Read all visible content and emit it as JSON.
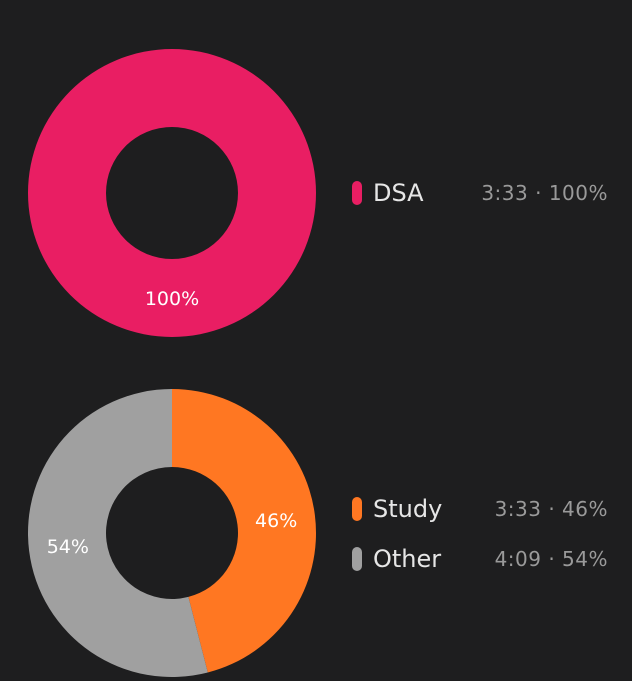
{
  "chart_data": [
    {
      "type": "pie",
      "donut": true,
      "slices": [
        {
          "label": "DSA",
          "time": "3:33",
          "percent": 100,
          "percent_label": "100%",
          "color": "#e91e63"
        }
      ]
    },
    {
      "type": "pie",
      "donut": true,
      "slices": [
        {
          "label": "Study",
          "time": "3:33",
          "percent": 46,
          "percent_label": "46%",
          "color": "#ff7722"
        },
        {
          "label": "Other",
          "time": "4:09",
          "percent": 54,
          "percent_label": "54%",
          "color": "#a0a0a0"
        }
      ]
    }
  ]
}
